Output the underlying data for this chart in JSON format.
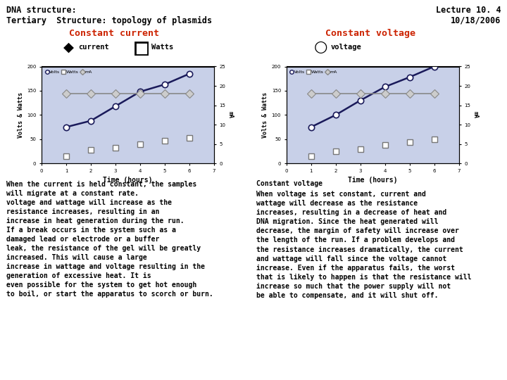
{
  "title_left1": "DNA structure:",
  "title_left2": "Tertiary  Structure: topology of plasmids",
  "title_right1": "Lecture 10. 4",
  "title_right2": "10/18/2006",
  "const_current_title": "Constant current",
  "const_voltage_title": "Constant voltage",
  "chart_bg": "#c8d0e8",
  "left_chart": {
    "time": [
      1,
      2,
      3,
      4,
      5,
      6
    ],
    "volts": [
      75,
      88,
      118,
      148,
      163,
      185
    ],
    "watts": [
      15,
      28,
      32,
      40,
      47,
      52
    ],
    "mA_right": [
      18,
      18,
      18,
      18,
      18,
      18
    ],
    "ylabel_left": "Volts & Watts",
    "ylabel_right": "mA",
    "xlabel": "Time (hours)",
    "ylim_left": [
      0,
      200
    ],
    "ylim_right": [
      0,
      25
    ],
    "xlim": [
      0,
      7
    ],
    "yticks_left": [
      0,
      50,
      100,
      150,
      200
    ],
    "yticks_right": [
      0,
      5,
      10,
      15,
      20,
      25
    ]
  },
  "right_chart": {
    "time": [
      1,
      2,
      3,
      4,
      5,
      6
    ],
    "volts": [
      75,
      100,
      130,
      158,
      178,
      200
    ],
    "watts": [
      15,
      25,
      30,
      38,
      44,
      50
    ],
    "mA_right": [
      18,
      18,
      18,
      18,
      18,
      18
    ],
    "ylabel_left": "Volts & Watts",
    "ylabel_right": "mA",
    "xlabel": "Time (hours)",
    "ylim_left": [
      0,
      200
    ],
    "ylim_right": [
      0,
      25
    ],
    "xlim": [
      0,
      7
    ],
    "yticks_left": [
      0,
      50,
      100,
      150,
      200
    ],
    "yticks_right": [
      0,
      5,
      10,
      15,
      20,
      25
    ]
  },
  "text_left": "When the current is held constant, the samples\nwill migrate at a constant rate.\nvoltage and wattage will increase as the\nresistance increases, resulting in an\nincrease in heat generation during the run.\nIf a break occurs in the system such as a\ndamaged lead or electrode or a buffer\nleak, the resistance of the gel will be greatly\nincreased. This will cause a large\nincrease in wattage and voltage resulting in the\ngeneration of excessive heat. It is\neven possible for the system to get hot enough\nto boil, or start the apparatus to scorch or burn.",
  "text_right_title": "Constant voltage",
  "text_right": "When voltage is set constant, current and\nwattage will decrease as the resistance\nincreases, resulting in a decrease of heat and\nDNA migration. Since the heat generated will\ndecrease, the margin of safety will increase over\nthe length of the run. If a problem develops and\nthe resistance increases dramatically, the current\nand wattage will fall since the voltage cannot\nincrease. Even if the apparatus fails, the worst\nthat is likely to happen is that the resistance will\nincrease so much that the power supply will not\nbe able to compensate, and it will shut off.",
  "bg_color": "white",
  "text_color": "black",
  "red_color": "#cc2200",
  "dark_line_color": "#1a1a5a",
  "mA_line_color": "#888888",
  "legend_label_volts": "Volts",
  "legend_label_watts": "Watts",
  "legend_label_mA": "mA"
}
